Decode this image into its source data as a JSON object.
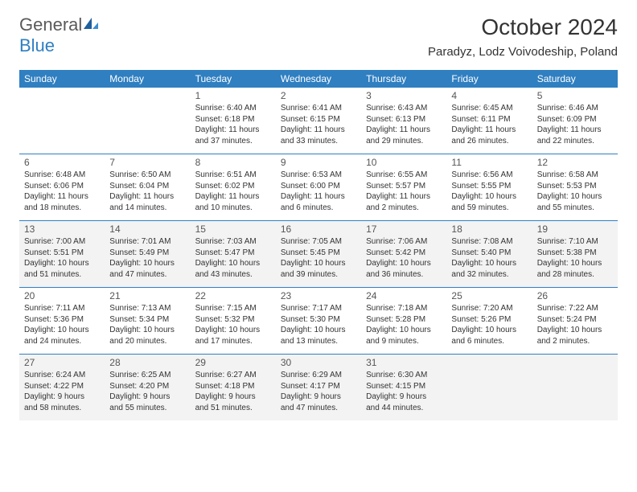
{
  "logo": {
    "text1": "General",
    "text2": "Blue"
  },
  "title": "October 2024",
  "location": "Paradyz, Lodz Voivodeship, Poland",
  "colors": {
    "header_bg": "#2f7fc1",
    "header_text": "#ffffff",
    "row_border": "#2f7fc1",
    "alt_row_bg": "#f3f3f3",
    "page_bg": "#ffffff",
    "text": "#333333",
    "logo_gray": "#5a5a5a",
    "logo_blue": "#2f7fc1"
  },
  "fonts": {
    "title_pt": 28,
    "location_pt": 15,
    "header_pt": 12,
    "daynum_pt": 12,
    "body_pt": 10
  },
  "dayNames": [
    "Sunday",
    "Monday",
    "Tuesday",
    "Wednesday",
    "Thursday",
    "Friday",
    "Saturday"
  ],
  "weeks": [
    {
      "alt": false,
      "cells": [
        {
          "n": "",
          "sr": "",
          "ss": "",
          "dl1": "",
          "dl2": ""
        },
        {
          "n": "",
          "sr": "",
          "ss": "",
          "dl1": "",
          "dl2": ""
        },
        {
          "n": "1",
          "sr": "Sunrise: 6:40 AM",
          "ss": "Sunset: 6:18 PM",
          "dl1": "Daylight: 11 hours",
          "dl2": "and 37 minutes."
        },
        {
          "n": "2",
          "sr": "Sunrise: 6:41 AM",
          "ss": "Sunset: 6:15 PM",
          "dl1": "Daylight: 11 hours",
          "dl2": "and 33 minutes."
        },
        {
          "n": "3",
          "sr": "Sunrise: 6:43 AM",
          "ss": "Sunset: 6:13 PM",
          "dl1": "Daylight: 11 hours",
          "dl2": "and 29 minutes."
        },
        {
          "n": "4",
          "sr": "Sunrise: 6:45 AM",
          "ss": "Sunset: 6:11 PM",
          "dl1": "Daylight: 11 hours",
          "dl2": "and 26 minutes."
        },
        {
          "n": "5",
          "sr": "Sunrise: 6:46 AM",
          "ss": "Sunset: 6:09 PM",
          "dl1": "Daylight: 11 hours",
          "dl2": "and 22 minutes."
        }
      ]
    },
    {
      "alt": false,
      "cells": [
        {
          "n": "6",
          "sr": "Sunrise: 6:48 AM",
          "ss": "Sunset: 6:06 PM",
          "dl1": "Daylight: 11 hours",
          "dl2": "and 18 minutes."
        },
        {
          "n": "7",
          "sr": "Sunrise: 6:50 AM",
          "ss": "Sunset: 6:04 PM",
          "dl1": "Daylight: 11 hours",
          "dl2": "and 14 minutes."
        },
        {
          "n": "8",
          "sr": "Sunrise: 6:51 AM",
          "ss": "Sunset: 6:02 PM",
          "dl1": "Daylight: 11 hours",
          "dl2": "and 10 minutes."
        },
        {
          "n": "9",
          "sr": "Sunrise: 6:53 AM",
          "ss": "Sunset: 6:00 PM",
          "dl1": "Daylight: 11 hours",
          "dl2": "and 6 minutes."
        },
        {
          "n": "10",
          "sr": "Sunrise: 6:55 AM",
          "ss": "Sunset: 5:57 PM",
          "dl1": "Daylight: 11 hours",
          "dl2": "and 2 minutes."
        },
        {
          "n": "11",
          "sr": "Sunrise: 6:56 AM",
          "ss": "Sunset: 5:55 PM",
          "dl1": "Daylight: 10 hours",
          "dl2": "and 59 minutes."
        },
        {
          "n": "12",
          "sr": "Sunrise: 6:58 AM",
          "ss": "Sunset: 5:53 PM",
          "dl1": "Daylight: 10 hours",
          "dl2": "and 55 minutes."
        }
      ]
    },
    {
      "alt": true,
      "cells": [
        {
          "n": "13",
          "sr": "Sunrise: 7:00 AM",
          "ss": "Sunset: 5:51 PM",
          "dl1": "Daylight: 10 hours",
          "dl2": "and 51 minutes."
        },
        {
          "n": "14",
          "sr": "Sunrise: 7:01 AM",
          "ss": "Sunset: 5:49 PM",
          "dl1": "Daylight: 10 hours",
          "dl2": "and 47 minutes."
        },
        {
          "n": "15",
          "sr": "Sunrise: 7:03 AM",
          "ss": "Sunset: 5:47 PM",
          "dl1": "Daylight: 10 hours",
          "dl2": "and 43 minutes."
        },
        {
          "n": "16",
          "sr": "Sunrise: 7:05 AM",
          "ss": "Sunset: 5:45 PM",
          "dl1": "Daylight: 10 hours",
          "dl2": "and 39 minutes."
        },
        {
          "n": "17",
          "sr": "Sunrise: 7:06 AM",
          "ss": "Sunset: 5:42 PM",
          "dl1": "Daylight: 10 hours",
          "dl2": "and 36 minutes."
        },
        {
          "n": "18",
          "sr": "Sunrise: 7:08 AM",
          "ss": "Sunset: 5:40 PM",
          "dl1": "Daylight: 10 hours",
          "dl2": "and 32 minutes."
        },
        {
          "n": "19",
          "sr": "Sunrise: 7:10 AM",
          "ss": "Sunset: 5:38 PM",
          "dl1": "Daylight: 10 hours",
          "dl2": "and 28 minutes."
        }
      ]
    },
    {
      "alt": false,
      "cells": [
        {
          "n": "20",
          "sr": "Sunrise: 7:11 AM",
          "ss": "Sunset: 5:36 PM",
          "dl1": "Daylight: 10 hours",
          "dl2": "and 24 minutes."
        },
        {
          "n": "21",
          "sr": "Sunrise: 7:13 AM",
          "ss": "Sunset: 5:34 PM",
          "dl1": "Daylight: 10 hours",
          "dl2": "and 20 minutes."
        },
        {
          "n": "22",
          "sr": "Sunrise: 7:15 AM",
          "ss": "Sunset: 5:32 PM",
          "dl1": "Daylight: 10 hours",
          "dl2": "and 17 minutes."
        },
        {
          "n": "23",
          "sr": "Sunrise: 7:17 AM",
          "ss": "Sunset: 5:30 PM",
          "dl1": "Daylight: 10 hours",
          "dl2": "and 13 minutes."
        },
        {
          "n": "24",
          "sr": "Sunrise: 7:18 AM",
          "ss": "Sunset: 5:28 PM",
          "dl1": "Daylight: 10 hours",
          "dl2": "and 9 minutes."
        },
        {
          "n": "25",
          "sr": "Sunrise: 7:20 AM",
          "ss": "Sunset: 5:26 PM",
          "dl1": "Daylight: 10 hours",
          "dl2": "and 6 minutes."
        },
        {
          "n": "26",
          "sr": "Sunrise: 7:22 AM",
          "ss": "Sunset: 5:24 PM",
          "dl1": "Daylight: 10 hours",
          "dl2": "and 2 minutes."
        }
      ]
    },
    {
      "alt": true,
      "cells": [
        {
          "n": "27",
          "sr": "Sunrise: 6:24 AM",
          "ss": "Sunset: 4:22 PM",
          "dl1": "Daylight: 9 hours",
          "dl2": "and 58 minutes."
        },
        {
          "n": "28",
          "sr": "Sunrise: 6:25 AM",
          "ss": "Sunset: 4:20 PM",
          "dl1": "Daylight: 9 hours",
          "dl2": "and 55 minutes."
        },
        {
          "n": "29",
          "sr": "Sunrise: 6:27 AM",
          "ss": "Sunset: 4:18 PM",
          "dl1": "Daylight: 9 hours",
          "dl2": "and 51 minutes."
        },
        {
          "n": "30",
          "sr": "Sunrise: 6:29 AM",
          "ss": "Sunset: 4:17 PM",
          "dl1": "Daylight: 9 hours",
          "dl2": "and 47 minutes."
        },
        {
          "n": "31",
          "sr": "Sunrise: 6:30 AM",
          "ss": "Sunset: 4:15 PM",
          "dl1": "Daylight: 9 hours",
          "dl2": "and 44 minutes."
        },
        {
          "n": "",
          "sr": "",
          "ss": "",
          "dl1": "",
          "dl2": ""
        },
        {
          "n": "",
          "sr": "",
          "ss": "",
          "dl1": "",
          "dl2": ""
        }
      ]
    }
  ]
}
